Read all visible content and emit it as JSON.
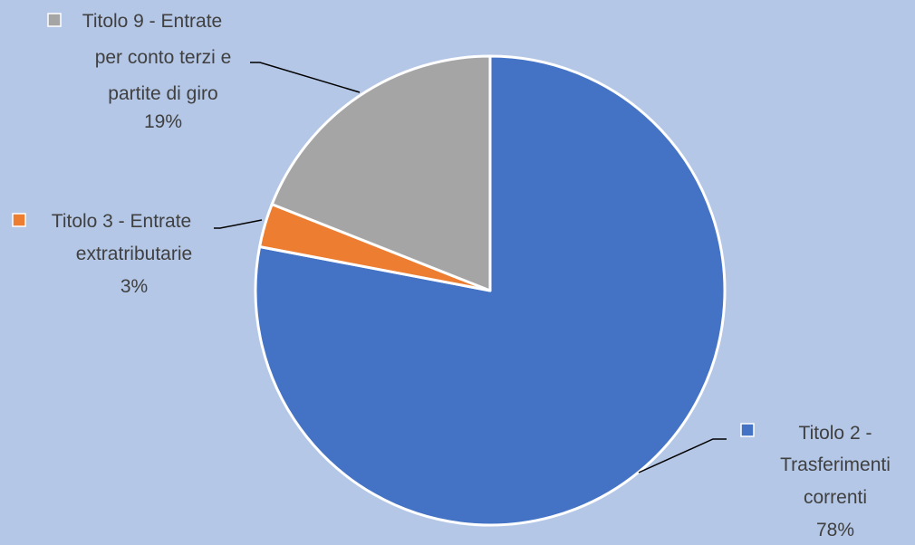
{
  "chart_data": {
    "type": "pie",
    "title": "",
    "start_angle_deg": 0,
    "direction": "clockwise",
    "slices": [
      {
        "name": "Titolo 2 - Trasferimenti correnti",
        "value": 78,
        "percent_label": "78%",
        "label_lines": [
          "Titolo 2 -",
          "Trasferimenti",
          "correnti"
        ],
        "color": "#4472c4"
      },
      {
        "name": "Titolo 3 - Entrate extratributarie",
        "value": 3,
        "percent_label": "3%",
        "label_lines": [
          "Titolo 3 - Entrate",
          "extratributarie"
        ],
        "color": "#ed7d31"
      },
      {
        "name": "Titolo 9 - Entrate per conto terzi e partite di giro",
        "value": 19,
        "percent_label": "19%",
        "label_lines": [
          "Titolo 9 - Entrate",
          "per conto terzi e",
          "partite di giro"
        ],
        "color": "#a5a5a5"
      }
    ],
    "slice_border_color": "#ffffff",
    "leader_line_color": "#000000"
  }
}
